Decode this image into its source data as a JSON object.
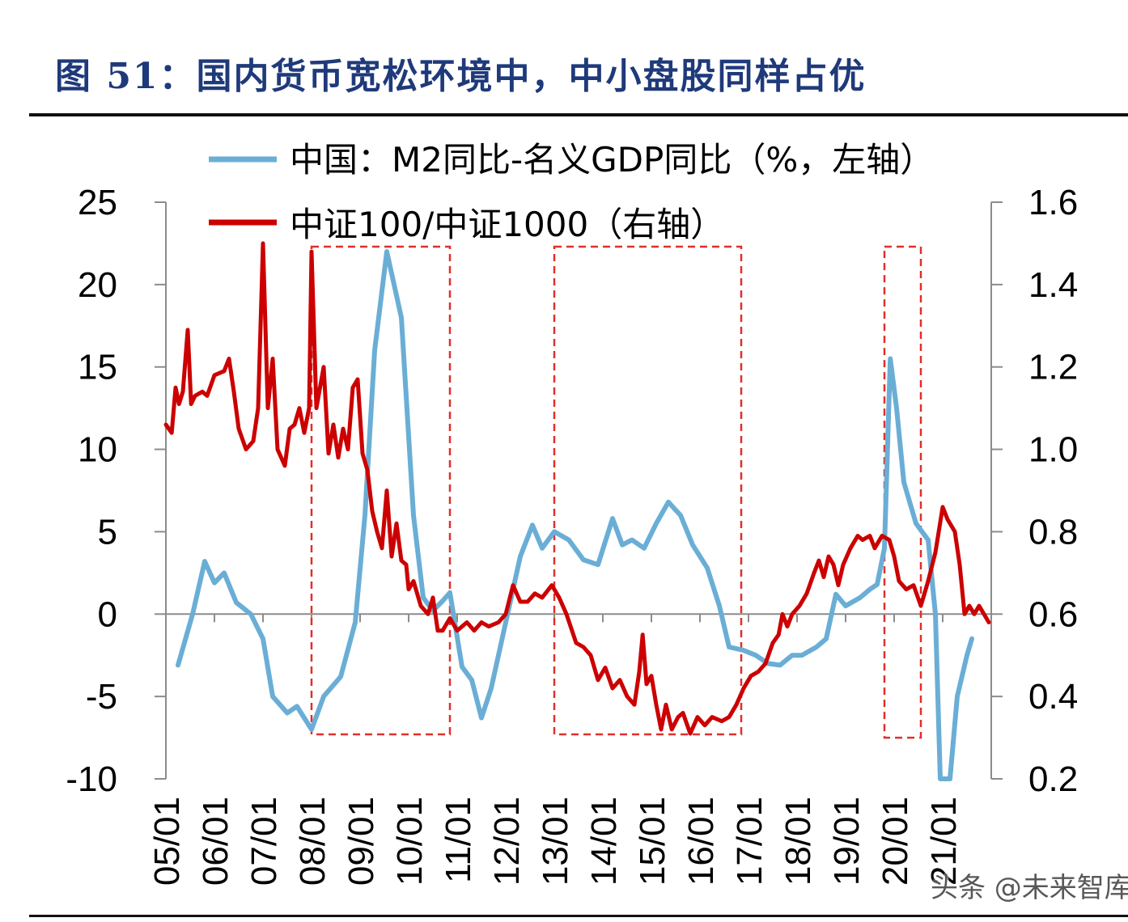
{
  "title": "图 51：国内货币宽松环境中，中小盘股同样占优",
  "watermark": "头条 @未来智库",
  "colors": {
    "series1": "#6aaed6",
    "series2": "#cc0000",
    "box": "#e0302a",
    "title": "#1f3a7a"
  },
  "chart_data": {
    "type": "line",
    "title": "图 51：国内货币宽松环境中，中小盘股同样占优",
    "left_axis": {
      "ylim": [
        -10,
        25
      ],
      "ticks": [
        "25",
        "20",
        "15",
        "10",
        "5",
        "0",
        "-5",
        "-10"
      ]
    },
    "right_axis": {
      "ylim": [
        0.2,
        1.6
      ],
      "ticks": [
        "1.6",
        "1.4",
        "1.2",
        "1.0",
        "0.8",
        "0.6",
        "0.4",
        "0.2"
      ]
    },
    "x_range": [
      2005.0,
      2022.0
    ],
    "x_ticks": [
      "05/01",
      "06/01",
      "07/01",
      "08/01",
      "09/01",
      "10/01",
      "11/01",
      "12/01",
      "13/01",
      "14/01",
      "15/01",
      "16/01",
      "17/01",
      "18/01",
      "19/01",
      "20/01",
      "21/01"
    ],
    "legend": [
      "中国：M2同比-名义GDP同比（%，左轴）",
      "中证100/中证1000（右轴）"
    ],
    "series": [
      {
        "name": "中国：M2同比-名义GDP同比（%，左轴）",
        "axis": "left",
        "points": [
          [
            2005.25,
            -3.1
          ],
          [
            2005.55,
            0.0
          ],
          [
            2005.8,
            3.2
          ],
          [
            2006.0,
            1.9
          ],
          [
            2006.2,
            2.5
          ],
          [
            2006.45,
            0.7
          ],
          [
            2006.75,
            0.0
          ],
          [
            2007.0,
            -1.5
          ],
          [
            2007.2,
            -5.0
          ],
          [
            2007.5,
            -6.0
          ],
          [
            2007.7,
            -5.6
          ],
          [
            2008.0,
            -7.0
          ],
          [
            2008.25,
            -5.0
          ],
          [
            2008.6,
            -3.8
          ],
          [
            2008.9,
            -0.5
          ],
          [
            2009.1,
            6.0
          ],
          [
            2009.3,
            16.0
          ],
          [
            2009.55,
            22.0
          ],
          [
            2009.85,
            18.0
          ],
          [
            2010.1,
            6.0
          ],
          [
            2010.3,
            1.0
          ],
          [
            2010.5,
            0.2
          ],
          [
            2010.7,
            0.8
          ],
          [
            2010.85,
            1.3
          ],
          [
            2011.1,
            -3.2
          ],
          [
            2011.3,
            -4.0
          ],
          [
            2011.5,
            -6.3
          ],
          [
            2011.7,
            -4.5
          ],
          [
            2012.0,
            -0.5
          ],
          [
            2012.3,
            3.5
          ],
          [
            2012.55,
            5.4
          ],
          [
            2012.75,
            4.0
          ],
          [
            2013.0,
            5.0
          ],
          [
            2013.3,
            4.5
          ],
          [
            2013.6,
            3.3
          ],
          [
            2013.9,
            3.0
          ],
          [
            2014.2,
            5.8
          ],
          [
            2014.4,
            4.2
          ],
          [
            2014.6,
            4.5
          ],
          [
            2014.85,
            4.0
          ],
          [
            2015.1,
            5.5
          ],
          [
            2015.35,
            6.8
          ],
          [
            2015.6,
            6.0
          ],
          [
            2015.85,
            4.2
          ],
          [
            2016.15,
            2.8
          ],
          [
            2016.4,
            0.5
          ],
          [
            2016.6,
            -2.0
          ],
          [
            2016.9,
            -2.2
          ],
          [
            2017.15,
            -2.5
          ],
          [
            2017.4,
            -3.0
          ],
          [
            2017.65,
            -3.1
          ],
          [
            2017.9,
            -2.5
          ],
          [
            2018.1,
            -2.5
          ],
          [
            2018.4,
            -2.0
          ],
          [
            2018.6,
            -1.5
          ],
          [
            2018.8,
            1.2
          ],
          [
            2019.0,
            0.5
          ],
          [
            2019.3,
            1.0
          ],
          [
            2019.5,
            1.5
          ],
          [
            2019.65,
            1.8
          ],
          [
            2019.8,
            4.0
          ],
          [
            2019.92,
            15.5
          ],
          [
            2020.05,
            12.5
          ],
          [
            2020.2,
            8.0
          ],
          [
            2020.45,
            5.5
          ],
          [
            2020.7,
            4.5
          ],
          [
            2020.85,
            0.0
          ],
          [
            2020.95,
            -10.0
          ],
          [
            2021.15,
            -10.0
          ],
          [
            2021.3,
            -5.0
          ],
          [
            2021.5,
            -2.5
          ],
          [
            2021.6,
            -1.5
          ]
        ]
      },
      {
        "name": "中证100/中证1000（右轴）",
        "axis": "right",
        "points": [
          [
            2005.0,
            1.06
          ],
          [
            2005.12,
            1.04
          ],
          [
            2005.2,
            1.15
          ],
          [
            2005.27,
            1.11
          ],
          [
            2005.35,
            1.14
          ],
          [
            2005.45,
            1.29
          ],
          [
            2005.52,
            1.11
          ],
          [
            2005.6,
            1.13
          ],
          [
            2005.75,
            1.14
          ],
          [
            2005.85,
            1.13
          ],
          [
            2006.0,
            1.18
          ],
          [
            2006.2,
            1.19
          ],
          [
            2006.3,
            1.22
          ],
          [
            2006.4,
            1.14
          ],
          [
            2006.5,
            1.05
          ],
          [
            2006.65,
            1.0
          ],
          [
            2006.8,
            1.02
          ],
          [
            2006.9,
            1.1
          ],
          [
            2007.0,
            1.5
          ],
          [
            2007.1,
            1.1
          ],
          [
            2007.2,
            1.22
          ],
          [
            2007.3,
            1.0
          ],
          [
            2007.45,
            0.96
          ],
          [
            2007.55,
            1.05
          ],
          [
            2007.65,
            1.06
          ],
          [
            2007.75,
            1.1
          ],
          [
            2007.85,
            1.04
          ],
          [
            2007.95,
            1.1
          ],
          [
            2008.0,
            1.48
          ],
          [
            2008.1,
            1.1
          ],
          [
            2008.25,
            1.2
          ],
          [
            2008.35,
            0.99
          ],
          [
            2008.45,
            1.06
          ],
          [
            2008.55,
            0.98
          ],
          [
            2008.65,
            1.05
          ],
          [
            2008.75,
            1.0
          ],
          [
            2008.85,
            1.15
          ],
          [
            2008.95,
            1.17
          ],
          [
            2009.05,
            0.99
          ],
          [
            2009.15,
            0.95
          ],
          [
            2009.25,
            0.85
          ],
          [
            2009.35,
            0.8
          ],
          [
            2009.45,
            0.76
          ],
          [
            2009.55,
            0.9
          ],
          [
            2009.65,
            0.74
          ],
          [
            2009.75,
            0.82
          ],
          [
            2009.85,
            0.73
          ],
          [
            2009.95,
            0.72
          ],
          [
            2010.0,
            0.66
          ],
          [
            2010.1,
            0.68
          ],
          [
            2010.25,
            0.62
          ],
          [
            2010.4,
            0.6
          ],
          [
            2010.5,
            0.64
          ],
          [
            2010.6,
            0.56
          ],
          [
            2010.7,
            0.56
          ],
          [
            2010.85,
            0.59
          ],
          [
            2011.0,
            0.56
          ],
          [
            2011.2,
            0.58
          ],
          [
            2011.35,
            0.56
          ],
          [
            2011.5,
            0.58
          ],
          [
            2011.65,
            0.57
          ],
          [
            2011.85,
            0.58
          ],
          [
            2012.0,
            0.6
          ],
          [
            2012.15,
            0.67
          ],
          [
            2012.3,
            0.63
          ],
          [
            2012.45,
            0.63
          ],
          [
            2012.6,
            0.65
          ],
          [
            2012.75,
            0.64
          ],
          [
            2012.95,
            0.67
          ],
          [
            2013.1,
            0.64
          ],
          [
            2013.25,
            0.6
          ],
          [
            2013.45,
            0.53
          ],
          [
            2013.6,
            0.52
          ],
          [
            2013.75,
            0.5
          ],
          [
            2013.9,
            0.44
          ],
          [
            2014.05,
            0.47
          ],
          [
            2014.2,
            0.42
          ],
          [
            2014.35,
            0.44
          ],
          [
            2014.5,
            0.4
          ],
          [
            2014.65,
            0.38
          ],
          [
            2014.75,
            0.46
          ],
          [
            2014.82,
            0.55
          ],
          [
            2014.9,
            0.43
          ],
          [
            2015.0,
            0.45
          ],
          [
            2015.1,
            0.38
          ],
          [
            2015.2,
            0.32
          ],
          [
            2015.3,
            0.38
          ],
          [
            2015.42,
            0.32
          ],
          [
            2015.55,
            0.35
          ],
          [
            2015.65,
            0.36
          ],
          [
            2015.8,
            0.31
          ],
          [
            2015.95,
            0.35
          ],
          [
            2016.1,
            0.33
          ],
          [
            2016.25,
            0.35
          ],
          [
            2016.45,
            0.34
          ],
          [
            2016.6,
            0.35
          ],
          [
            2016.75,
            0.38
          ],
          [
            2016.9,
            0.42
          ],
          [
            2017.05,
            0.45
          ],
          [
            2017.2,
            0.46
          ],
          [
            2017.35,
            0.48
          ],
          [
            2017.5,
            0.53
          ],
          [
            2017.62,
            0.55
          ],
          [
            2017.7,
            0.6
          ],
          [
            2017.8,
            0.57
          ],
          [
            2017.9,
            0.6
          ],
          [
            2018.05,
            0.62
          ],
          [
            2018.2,
            0.65
          ],
          [
            2018.35,
            0.7
          ],
          [
            2018.45,
            0.73
          ],
          [
            2018.55,
            0.69
          ],
          [
            2018.65,
            0.74
          ],
          [
            2018.75,
            0.72
          ],
          [
            2018.85,
            0.67
          ],
          [
            2018.95,
            0.72
          ],
          [
            2019.1,
            0.76
          ],
          [
            2019.25,
            0.79
          ],
          [
            2019.35,
            0.78
          ],
          [
            2019.5,
            0.79
          ],
          [
            2019.6,
            0.76
          ],
          [
            2019.75,
            0.79
          ],
          [
            2019.9,
            0.78
          ],
          [
            2020.0,
            0.74
          ],
          [
            2020.1,
            0.68
          ],
          [
            2020.25,
            0.66
          ],
          [
            2020.4,
            0.67
          ],
          [
            2020.55,
            0.62
          ],
          [
            2020.7,
            0.68
          ],
          [
            2020.85,
            0.75
          ],
          [
            2021.0,
            0.86
          ],
          [
            2021.1,
            0.83
          ],
          [
            2021.25,
            0.8
          ],
          [
            2021.35,
            0.72
          ],
          [
            2021.45,
            0.6
          ],
          [
            2021.55,
            0.62
          ],
          [
            2021.65,
            0.6
          ],
          [
            2021.75,
            0.62
          ],
          [
            2021.85,
            0.6
          ],
          [
            2021.95,
            0.58
          ]
        ]
      }
    ],
    "highlight_periods": [
      {
        "start": 2008.0,
        "end": 2010.85,
        "left_top": 22.3,
        "left_bottom": -7.3
      },
      {
        "start": 2013.0,
        "end": 2016.85,
        "left_top": 22.3,
        "left_bottom": -7.3
      },
      {
        "start": 2019.8,
        "end": 2020.55,
        "left_top": 22.3,
        "left_bottom": -7.5
      }
    ]
  }
}
